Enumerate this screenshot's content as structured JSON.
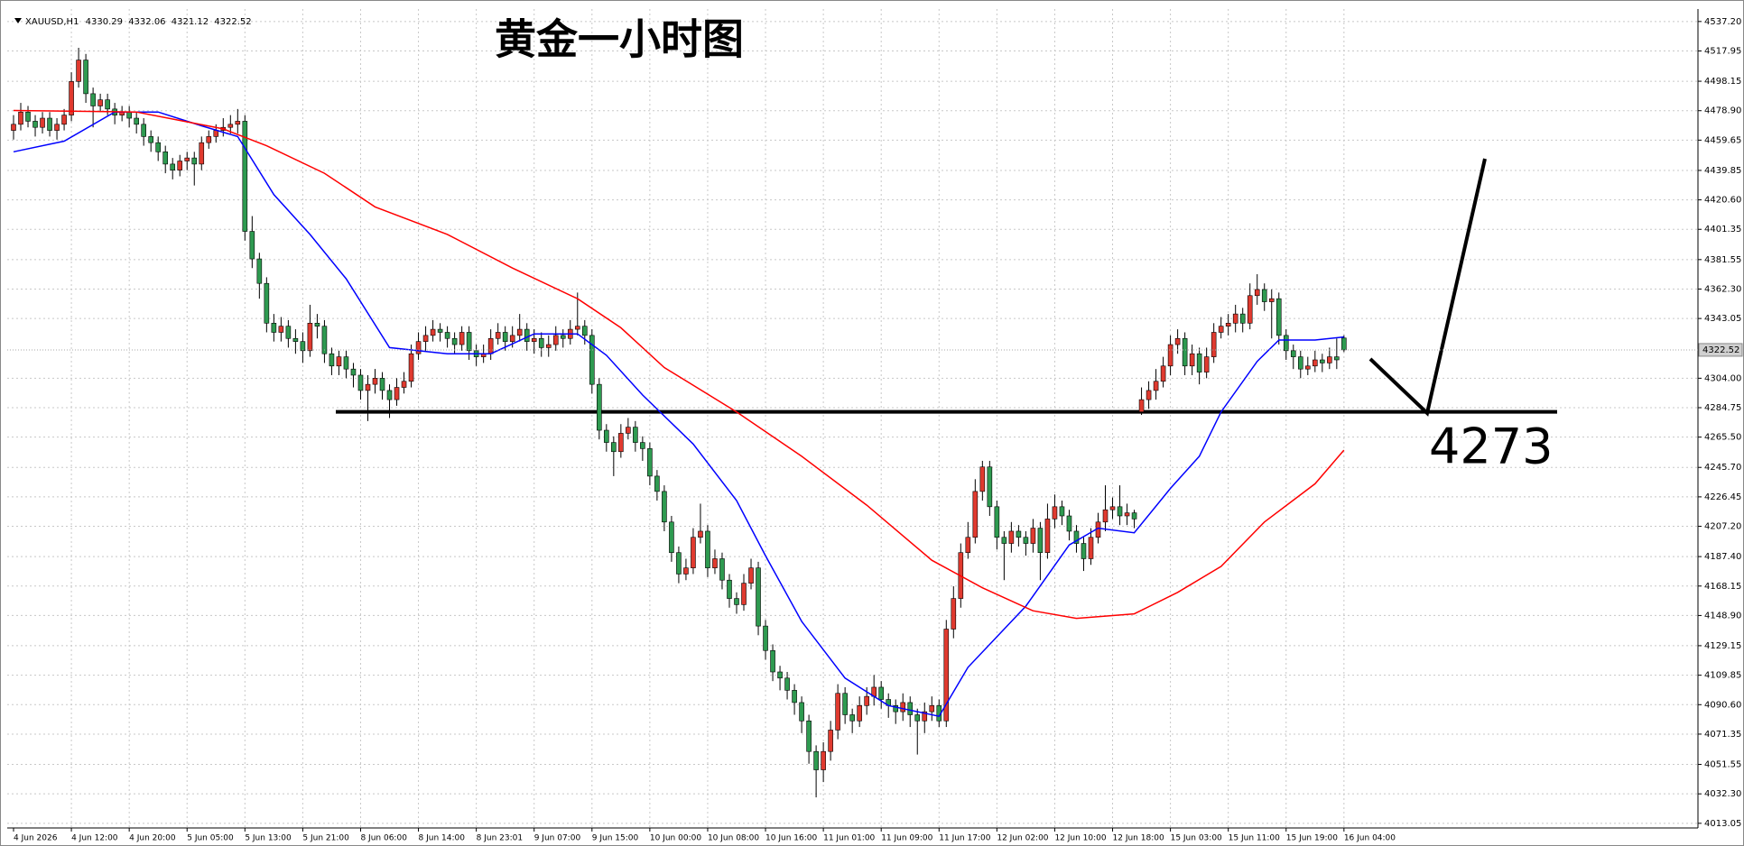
{
  "chart_data": {
    "type": "candlestick",
    "title": "黄金一小时图",
    "symbol": "XAUUSD,H1",
    "annotation": "4273",
    "support_line": 4282,
    "up_color": "#e03a2f",
    "down_color": "#2e9a50",
    "wick_color": "#000000",
    "ylim": [
      4010,
      4543
    ],
    "yticks": [
      4013.05,
      {
        "value": 4032.3,
        "label": "4032.30"
      },
      4051.55,
      4071.35,
      {
        "value": 4090.6,
        "label": "4090.60"
      },
      4109.85,
      4129.15,
      {
        "value": 4148.9,
        "label": "4148.90"
      },
      4168.15,
      {
        "value": 4187.4,
        "label": "4187.40"
      },
      {
        "value": 4207.2,
        "label": "4207.20"
      },
      4226.45,
      {
        "value": 4245.7,
        "label": "4245.70"
      },
      {
        "value": 4265.5,
        "label": "4265.50"
      },
      4284.75,
      {
        "value": 4304,
        "label": "4304.00"
      },
      4343.05,
      {
        "value": 4362.3,
        "label": "4362.30"
      },
      4381.55,
      4401.35,
      {
        "value": 4420.6,
        "label": "4420.60"
      },
      4439.85,
      4459.65,
      {
        "value": 4478.9,
        "label": "4478.90"
      },
      4498.15,
      4517.95,
      {
        "value": 4537.2,
        "label": "4537.20"
      }
    ],
    "grid": true,
    "categories": [
      "4 Jun 2026",
      null,
      null,
      null,
      null,
      null,
      null,
      null,
      "4 Jun 12:00",
      null,
      null,
      null,
      null,
      null,
      null,
      null,
      "4 Jun 20:00",
      null,
      null,
      null,
      null,
      null,
      null,
      null,
      "5 Jun 05:00",
      null,
      null,
      null,
      null,
      null,
      null,
      null,
      "5 Jun 13:00",
      null,
      null,
      null,
      null,
      null,
      null,
      null,
      "5 Jun 21:00",
      null,
      null,
      null,
      null,
      null,
      null,
      null,
      "8 Jun 06:00",
      null,
      null,
      null,
      null,
      null,
      null,
      null,
      "8 Jun 14:00",
      null,
      null,
      null,
      null,
      null,
      null,
      null,
      "8 Jun 23:01",
      null,
      null,
      null,
      null,
      null,
      null,
      null,
      "9 Jun 07:00",
      null,
      null,
      null,
      null,
      null,
      null,
      null,
      "9 Jun 15:00",
      null,
      null,
      null,
      null,
      null,
      null,
      null,
      "10 Jun 00:00",
      null,
      null,
      null,
      null,
      null,
      null,
      null,
      "10 Jun 08:00",
      null,
      null,
      null,
      null,
      null,
      null,
      null,
      "10 Jun 16:00",
      null,
      null,
      null,
      null,
      null,
      null,
      null,
      "11 Jun 01:00",
      null,
      null,
      null,
      null,
      null,
      null,
      null,
      "11 Jun 09:00",
      null,
      null,
      null,
      null,
      null,
      null,
      null,
      "11 Jun 17:00",
      null,
      null,
      null,
      null,
      null,
      null,
      null,
      "12 Jun 02:00",
      null,
      null,
      null,
      null,
      null,
      null,
      null,
      "12 Jun 10:00",
      null,
      null,
      null,
      null,
      null,
      null,
      null,
      "12 Jun 18:00",
      null,
      null,
      null,
      null,
      null,
      null,
      null,
      "15 Jun 03:00",
      null,
      null,
      null,
      null,
      null,
      null,
      null,
      "15 Jun 11:00",
      null,
      null,
      null,
      null,
      null,
      null,
      null,
      "15 Jun 19:00",
      null,
      null,
      null,
      null,
      null,
      null,
      null,
      "16 Jun 04:00"
    ],
    "open": [
      4466,
      4470,
      4478,
      4472,
      4468,
      4474,
      4466,
      4470,
      4476,
      4498,
      4512,
      4490,
      4482,
      4486,
      4480,
      4476,
      4478,
      4474,
      4470,
      4462,
      4458,
      4452,
      4444,
      4440,
      4446,
      4448,
      4444,
      4458,
      4462,
      4466,
      4468,
      4470,
      4472,
      4400,
      4382,
      4366,
      4340,
      4334,
      4338,
      4330,
      4328,
      4322,
      4340,
      4338,
      4320,
      4312,
      4318,
      4310,
      4306,
      4296,
      4300,
      4304,
      4296,
      4290,
      4298,
      4302,
      4320,
      4328,
      4332,
      4336,
      4334,
      4330,
      4326,
      4334,
      4322,
      4318,
      4320,
      4330,
      4334,
      4328,
      4332,
      4336,
      4328,
      4330,
      4324,
      4326,
      4332,
      4330,
      4336,
      4338,
      4332,
      4300,
      4270,
      4262,
      4256,
      4268,
      4272,
      4262,
      4258,
      4240,
      4230,
      4210,
      4190,
      4176,
      4180,
      4200,
      4204,
      4180,
      4186,
      4172,
      4160,
      4156,
      4170,
      4180,
      4142,
      4126,
      4112,
      4108,
      4100,
      4092,
      4080,
      4060,
      4048,
      4060,
      4074,
      4098,
      4084,
      4080,
      4090,
      4096,
      4102,
      4094,
      4090,
      4086,
      4092,
      4084,
      4080,
      4086,
      4090,
      4080,
      4140,
      4160,
      4190,
      4200,
      4230,
      4246,
      4220,
      4200,
      4196,
      4204,
      4200,
      4196,
      4206,
      4190,
      4212,
      4220,
      4214,
      4204,
      4196,
      4186,
      4200,
      4210,
      4218,
      4220,
      4214,
      4216,
      4282,
      4290,
      4296,
      4302,
      4312,
      4326,
      4330,
      4312,
      4320,
      4308,
      4318,
      4334,
      4338,
      4340,
      4346,
      4340,
      4358,
      4362,
      4354,
      4356,
      4332,
      4322,
      4318,
      4310,
      4312,
      4316,
      4314,
      4318,
      4330.29
    ],
    "high": [
      4476,
      4484,
      4482,
      4476,
      4478,
      4478,
      4474,
      4480,
      4504,
      4520,
      4516,
      4494,
      4490,
      4490,
      4484,
      4482,
      4482,
      4478,
      4474,
      4466,
      4462,
      4456,
      4448,
      4450,
      4452,
      4452,
      4462,
      4466,
      4470,
      4474,
      4476,
      4480,
      4476,
      4410,
      4386,
      4370,
      4346,
      4344,
      4342,
      4336,
      4334,
      4352,
      4346,
      4342,
      4324,
      4322,
      4322,
      4314,
      4310,
      4306,
      4310,
      4308,
      4300,
      4304,
      4308,
      4326,
      4334,
      4338,
      4342,
      4340,
      4338,
      4334,
      4338,
      4338,
      4326,
      4326,
      4336,
      4340,
      4338,
      4338,
      4346,
      4340,
      4336,
      4334,
      4332,
      4338,
      4336,
      4342,
      4360,
      4342,
      4336,
      4304,
      4274,
      4266,
      4274,
      4278,
      4276,
      4266,
      4262,
      4244,
      4234,
      4214,
      4194,
      4186,
      4206,
      4222,
      4208,
      4192,
      4190,
      4176,
      4164,
      4176,
      4186,
      4184,
      4146,
      4130,
      4116,
      4112,
      4104,
      4096,
      4084,
      4064,
      4066,
      4080,
      4104,
      4102,
      4088,
      4096,
      4102,
      4110,
      4106,
      4098,
      4094,
      4098,
      4096,
      4088,
      4092,
      4096,
      4094,
      4146,
      4168,
      4196,
      4210,
      4238,
      4250,
      4250,
      4224,
      4204,
      4210,
      4208,
      4204,
      4212,
      4210,
      4222,
      4228,
      4224,
      4218,
      4208,
      4200,
      4206,
      4216,
      4234,
      4226,
      4234,
      4222,
      4218,
      4298,
      4302,
      4310,
      4318,
      4332,
      4336,
      4334,
      4326,
      4324,
      4324,
      4340,
      4344,
      4346,
      4352,
      4350,
      4366,
      4372,
      4366,
      4362,
      4360,
      4336,
      4326,
      4322,
      4318,
      4322,
      4320,
      4324,
      4330,
      4332.06
    ],
    "low": [
      4460,
      4466,
      4468,
      4462,
      4464,
      4462,
      4460,
      4466,
      4472,
      4494,
      4484,
      4468,
      4478,
      4476,
      4470,
      4472,
      4468,
      4464,
      4456,
      4452,
      4446,
      4438,
      4434,
      4436,
      4440,
      4430,
      4440,
      4454,
      4458,
      4462,
      4464,
      4464,
      4394,
      4376,
      4356,
      4334,
      4328,
      4328,
      4324,
      4320,
      4314,
      4318,
      4330,
      4314,
      4306,
      4306,
      4304,
      4298,
      4290,
      4276,
      4294,
      4290,
      4278,
      4286,
      4294,
      4298,
      4316,
      4322,
      4328,
      4328,
      4324,
      4320,
      4322,
      4316,
      4312,
      4314,
      4316,
      4326,
      4322,
      4324,
      4328,
      4322,
      4320,
      4318,
      4318,
      4322,
      4324,
      4326,
      4332,
      4326,
      4294,
      4264,
      4256,
      4240,
      4252,
      4264,
      4256,
      4250,
      4234,
      4224,
      4204,
      4184,
      4170,
      4172,
      4176,
      4196,
      4174,
      4176,
      4166,
      4154,
      4150,
      4152,
      4166,
      4136,
      4120,
      4106,
      4100,
      4094,
      4084,
      4072,
      4052,
      4030,
      4040,
      4054,
      4068,
      4078,
      4072,
      4076,
      4084,
      4090,
      4088,
      4082,
      4078,
      4080,
      4076,
      4058,
      4072,
      4080,
      4076,
      4076,
      4134,
      4154,
      4186,
      4196,
      4224,
      4214,
      4192,
      4172,
      4190,
      4194,
      4188,
      4190,
      4172,
      4186,
      4206,
      4208,
      4198,
      4190,
      4178,
      4182,
      4196,
      4204,
      4212,
      4208,
      4208,
      4206,
      4280,
      4284,
      4290,
      4298,
      4306,
      4320,
      4306,
      4306,
      4300,
      4304,
      4314,
      4330,
      4332,
      4334,
      4334,
      4336,
      4352,
      4348,
      4330,
      4326,
      4316,
      4310,
      4304,
      4306,
      4308,
      4308,
      4310,
      4310,
      4321.12
    ],
    "close": [
      4470,
      4478,
      4472,
      4468,
      4474,
      4466,
      4470,
      4476,
      4498,
      4512,
      4490,
      4482,
      4486,
      4480,
      4476,
      4478,
      4474,
      4470,
      4462,
      4458,
      4452,
      4444,
      4440,
      4446,
      4448,
      4444,
      4458,
      4462,
      4466,
      4468,
      4470,
      4472,
      4400,
      4382,
      4366,
      4340,
      4334,
      4338,
      4330,
      4328,
      4322,
      4340,
      4338,
      4320,
      4312,
      4318,
      4310,
      4306,
      4296,
      4300,
      4304,
      4296,
      4290,
      4298,
      4302,
      4320,
      4328,
      4332,
      4336,
      4334,
      4330,
      4326,
      4334,
      4322,
      4318,
      4320,
      4330,
      4334,
      4328,
      4332,
      4336,
      4328,
      4330,
      4324,
      4326,
      4332,
      4330,
      4336,
      4338,
      4332,
      4300,
      4270,
      4262,
      4256,
      4268,
      4272,
      4262,
      4258,
      4240,
      4230,
      4210,
      4190,
      4176,
      4180,
      4200,
      4204,
      4180,
      4186,
      4172,
      4160,
      4156,
      4170,
      4180,
      4142,
      4126,
      4112,
      4108,
      4100,
      4092,
      4080,
      4060,
      4048,
      4060,
      4074,
      4098,
      4084,
      4080,
      4090,
      4096,
      4102,
      4094,
      4090,
      4086,
      4092,
      4084,
      4080,
      4086,
      4090,
      4080,
      4140,
      4160,
      4190,
      4200,
      4230,
      4246,
      4220,
      4200,
      4196,
      4204,
      4200,
      4196,
      4206,
      4190,
      4212,
      4220,
      4214,
      4204,
      4196,
      4186,
      4200,
      4210,
      4218,
      4220,
      4214,
      4216,
      4212,
      4290,
      4296,
      4302,
      4312,
      4326,
      4330,
      4312,
      4320,
      4308,
      4318,
      4334,
      4338,
      4340,
      4346,
      4340,
      4358,
      4362,
      4354,
      4356,
      4332,
      4322,
      4318,
      4310,
      4312,
      4316,
      4314,
      4318,
      4316,
      4322.52
    ],
    "ma_lines": [
      {
        "color": "#0000ff",
        "x": [
          0,
          7,
          14,
          20,
          26,
          31,
          36,
          41,
          46,
          52,
          60,
          66,
          72,
          78,
          82,
          87,
          94,
          100,
          104,
          109,
          115,
          121,
          128,
          132,
          140,
          146,
          150,
          155,
          160,
          164,
          167,
          172,
          175,
          180,
          184
        ],
        "values": [
          4452,
          4459,
          4478,
          4478,
          4469,
          4462,
          4424,
          4398,
          4369,
          4324,
          4320,
          4320,
          4333,
          4333,
          4319,
          4293,
          4261,
          4224,
          4188,
          4145,
          4108,
          4090,
          4083,
          4115,
          4155,
          4195,
          4206,
          4203,
          4232,
          4253,
          4282,
          4315,
          4329,
          4329,
          4331
        ]
      },
      {
        "color": "#ff0000",
        "x": [
          0,
          17,
          29,
          35,
          43,
          50,
          60,
          69,
          78,
          84,
          90,
          100,
          109,
          118,
          127,
          134,
          141,
          147,
          155,
          161,
          167,
          173,
          180,
          184
        ],
        "values": [
          4479,
          4478,
          4467,
          4456,
          4438,
          4416,
          4398,
          4376,
          4356,
          4337,
          4311,
          4282,
          4253,
          4221,
          4185,
          4167,
          4152,
          4147,
          4150,
          4164,
          4181,
          4210,
          4235,
          4257
        ]
      }
    ]
  }
}
